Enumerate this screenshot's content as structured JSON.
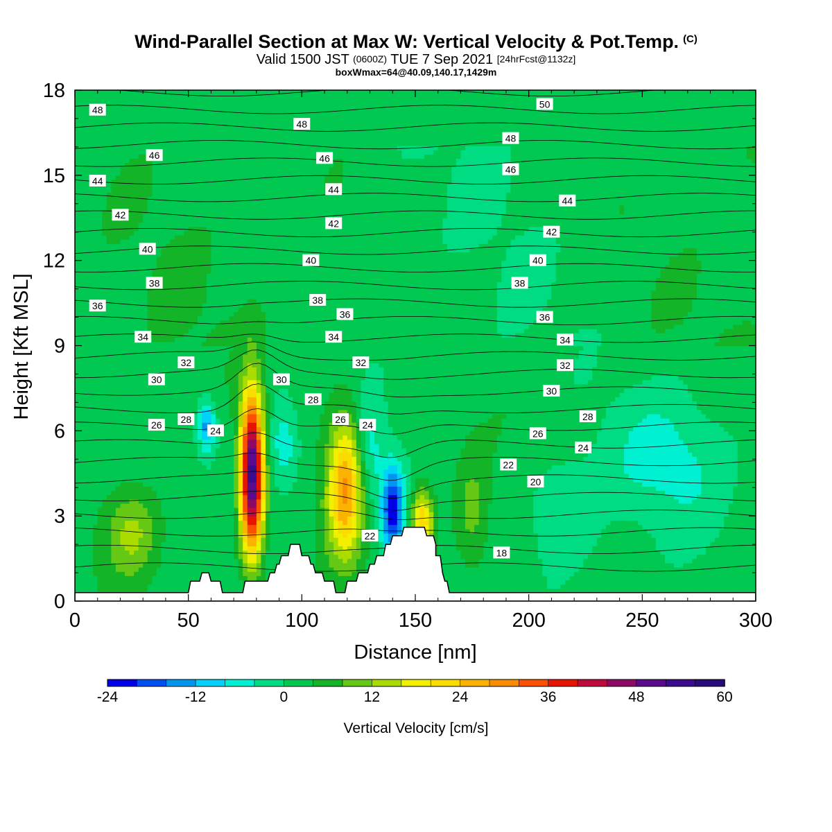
{
  "header": {
    "title": "Wind-Parallel Section at Max W: Vertical Velocity & Pot.Temp.",
    "copyright": "(C)",
    "valid_prefix": "Valid 1500 JST",
    "valid_utc": "(0600Z)",
    "valid_date": "TUE 7 Sep 2021",
    "forecast": "[24hrFcst@1132z]",
    "box_info": "boxWmax=64@40.09,140.17,1429m"
  },
  "chart_data": {
    "type": "heatmap",
    "xlabel": "Distance [nm]",
    "ylabel": "Height [Kft MSL]",
    "xlim": [
      0,
      300
    ],
    "ylim": [
      0,
      18
    ],
    "x_ticks": [
      "0",
      "50",
      "100",
      "150",
      "200",
      "250",
      "300"
    ],
    "y_ticks": [
      "0",
      "3",
      "6",
      "9",
      "12",
      "15",
      "18"
    ],
    "colorbar": {
      "label": "Vertical Velocity [cm/s]",
      "min": -24,
      "max": 60,
      "step": 4,
      "tick_labels": [
        "-24",
        "-12",
        "0",
        "12",
        "24",
        "36",
        "48",
        "60"
      ],
      "colors": [
        "#0000e6",
        "#0050f0",
        "#0096f0",
        "#00d2fa",
        "#00f0d2",
        "#00dc82",
        "#00c850",
        "#14b428",
        "#64c814",
        "#aadc00",
        "#f0f000",
        "#fadc00",
        "#fab400",
        "#fa8c00",
        "#fa5000",
        "#e61400",
        "#be0a3c",
        "#8c0a64",
        "#5a0a8c",
        "#3c0a8c",
        "#280a78"
      ]
    },
    "velocity_features": [
      {
        "name": "updraft",
        "x": 78,
        "z": 4.5,
        "peak": 52,
        "rx": 5,
        "rz": 2.9
      },
      {
        "name": "updraft",
        "x": 119,
        "z": 4.0,
        "peak": 26,
        "rx": 8,
        "rz": 2.5
      },
      {
        "name": "updraft",
        "x": 153,
        "z": 2.8,
        "peak": 22,
        "rx": 5,
        "rz": 1.2
      },
      {
        "name": "updraft",
        "x": 25,
        "z": 2.4,
        "peak": 10,
        "rx": 12,
        "rz": 1.6
      },
      {
        "name": "updraft",
        "x": 175,
        "z": 3.0,
        "peak": 8,
        "rx": 8,
        "rz": 2.2
      },
      {
        "name": "downdraft",
        "x": 140,
        "z": 3.2,
        "peak": -24,
        "rx": 5,
        "rz": 1.6
      },
      {
        "name": "downdraft",
        "x": 58,
        "z": 6.2,
        "peak": -16,
        "rx": 4,
        "rz": 0.9
      },
      {
        "name": "downdraft",
        "x": 92,
        "z": 5.5,
        "peak": -10,
        "rx": 7,
        "rz": 1.6
      },
      {
        "name": "downdraft",
        "x": 130,
        "z": 5.2,
        "peak": -8,
        "rx": 6,
        "rz": 2.0
      },
      {
        "name": "downdraft",
        "x": 262,
        "z": 5.0,
        "peak": -7,
        "rx": 28,
        "rz": 2.5
      },
      {
        "name": "downdraft",
        "x": 215,
        "z": 3.0,
        "peak": -7,
        "rx": 15,
        "rz": 2.0
      }
    ],
    "theta_labels": [
      "48",
      "46",
      "44",
      "42",
      "40",
      "38",
      "36",
      "34",
      "32",
      "30",
      "28",
      "26",
      "24",
      "48",
      "46",
      "44",
      "42",
      "40",
      "38",
      "36",
      "34",
      "32",
      "30",
      "28",
      "26",
      "24",
      "22",
      "50",
      "48",
      "46",
      "44",
      "42",
      "40",
      "38",
      "36",
      "34",
      "32",
      "30",
      "28",
      "26",
      "24",
      "22",
      "20",
      "18"
    ],
    "terrain": [
      [
        0,
        0.3
      ],
      [
        49,
        0.3
      ],
      [
        50,
        0.3
      ],
      [
        51,
        0.7
      ],
      [
        55,
        0.7
      ],
      [
        56,
        1.0
      ],
      [
        59,
        1.0
      ],
      [
        60,
        0.7
      ],
      [
        64,
        0.7
      ],
      [
        65,
        0.3
      ],
      [
        74,
        0.3
      ],
      [
        75,
        0.7
      ],
      [
        85,
        0.7
      ],
      [
        86,
        1.0
      ],
      [
        88,
        1.0
      ],
      [
        89,
        1.3
      ],
      [
        90,
        1.3
      ],
      [
        91,
        1.6
      ],
      [
        94,
        1.6
      ],
      [
        95,
        2.0
      ],
      [
        99,
        2.0
      ],
      [
        100,
        1.6
      ],
      [
        103,
        1.6
      ],
      [
        104,
        1.3
      ],
      [
        105,
        1.3
      ],
      [
        106,
        1.0
      ],
      [
        109,
        1.0
      ],
      [
        110,
        0.7
      ],
      [
        114,
        0.7
      ],
      [
        115,
        0.3
      ],
      [
        119,
        0.3
      ],
      [
        120,
        0.7
      ],
      [
        124,
        0.7
      ],
      [
        125,
        1.0
      ],
      [
        129,
        1.0
      ],
      [
        130,
        1.3
      ],
      [
        132,
        1.3
      ],
      [
        133,
        1.6
      ],
      [
        136,
        1.6
      ],
      [
        137,
        2.0
      ],
      [
        139,
        2.0
      ],
      [
        140,
        2.3
      ],
      [
        144,
        2.3
      ],
      [
        145,
        2.6
      ],
      [
        154,
        2.6
      ],
      [
        155,
        2.3
      ],
      [
        158,
        2.3
      ],
      [
        159,
        2.0
      ],
      [
        159,
        1.6
      ],
      [
        161,
        1.6
      ],
      [
        162,
        1.0
      ],
      [
        163,
        0.7
      ],
      [
        164,
        0.7
      ],
      [
        165,
        0.3
      ],
      [
        300,
        0.3
      ]
    ]
  }
}
